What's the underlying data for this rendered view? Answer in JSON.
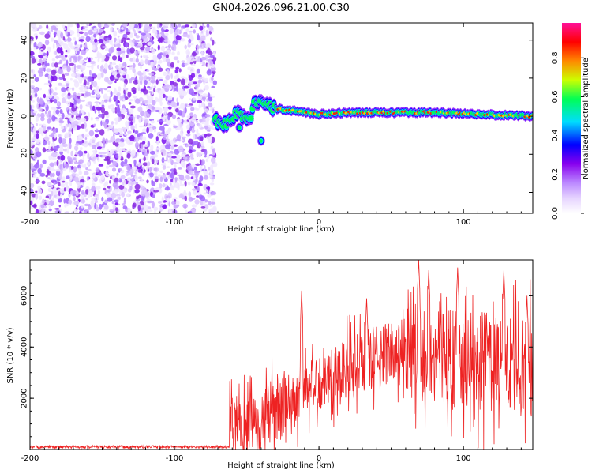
{
  "title": "GN04.2026.096.21.00.C30",
  "chart_data": [
    {
      "type": "heatmap",
      "xlabel": "Height of straight line (km)",
      "ylabel": "Frequency (Hz)",
      "xlim": [
        -200,
        148
      ],
      "ylim": [
        -51,
        49
      ],
      "x_ticks": [
        -200,
        -100,
        0,
        100
      ],
      "y_ticks": [
        -40,
        -20,
        0,
        20,
        40
      ],
      "noise_region_x": [
        -200,
        -72
      ],
      "signal_track": [
        {
          "x": -72,
          "y": -2
        },
        {
          "x": -65,
          "y": -4
        },
        {
          "x": -55,
          "y": 2
        },
        {
          "x": -48,
          "y": -3
        },
        {
          "x": -45,
          "y": 7
        },
        {
          "x": -38,
          "y": 6
        },
        {
          "x": -30,
          "y": 4
        },
        {
          "x": -20,
          "y": 3
        },
        {
          "x": -10,
          "y": 2
        },
        {
          "x": 0,
          "y": 1
        },
        {
          "x": 20,
          "y": 2
        },
        {
          "x": 50,
          "y": 2
        },
        {
          "x": 80,
          "y": 2
        },
        {
          "x": 110,
          "y": 1
        },
        {
          "x": 148,
          "y": 0
        }
      ],
      "secondary_blobs": [
        {
          "x": -40,
          "y": -13
        },
        {
          "x": -55,
          "y": -6
        }
      ]
    },
    {
      "type": "line",
      "xlabel": "Height of straight line (km)",
      "ylabel": "SNR (10 * v/v)",
      "xlim": [
        -200,
        148
      ],
      "ylim": [
        0,
        7400
      ],
      "x_ticks": [
        -200,
        -100,
        0,
        100
      ],
      "y_ticks": [
        2000,
        4000,
        6000
      ],
      "series_color": "#ee2222",
      "segments": [
        {
          "x0": -200,
          "x1": -62,
          "mean": 100,
          "amp": 100
        },
        {
          "x0": -62,
          "x1": -20,
          "mean": 1000,
          "amp": 2200
        },
        {
          "x0": -20,
          "x1": 10,
          "mean": 2500,
          "amp": 2000
        },
        {
          "x0": 10,
          "x1": 60,
          "mean": 3800,
          "amp": 2200
        },
        {
          "x0": 60,
          "x1": 148,
          "mean": 3700,
          "amp": 3500
        }
      ],
      "spikes": [
        {
          "x": -12,
          "y": 6200
        },
        {
          "x": 33,
          "y": 5900
        },
        {
          "x": 69,
          "y": 7400
        },
        {
          "x": 76,
          "y": 7000
        },
        {
          "x": 96,
          "y": 7100
        },
        {
          "x": 128,
          "y": 7000
        },
        {
          "x": 144,
          "y": 6000
        }
      ]
    }
  ],
  "colorbar": {
    "label": "Normalized spectral amplitude",
    "ticks": [
      "0.0",
      "0.2",
      "0.4",
      "0.6",
      "0.8"
    ],
    "range": [
      0,
      0.98
    ],
    "colors": [
      "#ffffff",
      "#bb88ff",
      "#8800ee",
      "#0000ff",
      "#00ddff",
      "#00ff55",
      "#ccff00",
      "#ff8800",
      "#ff0000",
      "#ff1199"
    ]
  }
}
